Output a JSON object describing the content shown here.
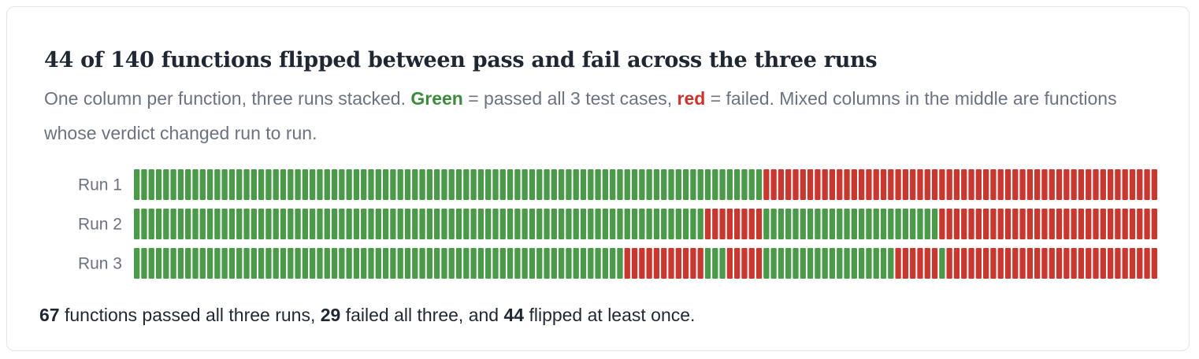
{
  "header": {
    "title": "44 of 140 functions flipped between pass and fail across the three runs",
    "subtitle_part1": "One column per function, three runs stacked. ",
    "subtitle_green": "Green",
    "subtitle_part2": " = passed all 3 test cases, ",
    "subtitle_red": "red",
    "subtitle_part3": " = failed. Mixed columns in the middle are functions whose verdict changed run to run."
  },
  "summary": {
    "passed_all": "67",
    "text1": " functions passed all three runs, ",
    "failed_all": "29",
    "text2": " failed all three, and ",
    "flipped": "44",
    "text3": " flipped at least once."
  },
  "colors": {
    "pass": "#4a9a4a",
    "fail": "#c9382f"
  },
  "chart_data": {
    "type": "heatmap",
    "columns": 140,
    "categories": [
      "pass",
      "fail"
    ],
    "rows": [
      {
        "name": "Run 1",
        "segments": [
          {
            "status": "pass",
            "count": 86
          },
          {
            "status": "fail",
            "count": 54
          }
        ]
      },
      {
        "name": "Run 2",
        "segments": [
          {
            "status": "pass",
            "count": 78
          },
          {
            "status": "fail",
            "count": 8
          },
          {
            "status": "pass",
            "count": 24
          },
          {
            "status": "fail",
            "count": 30
          }
        ]
      },
      {
        "name": "Run 3",
        "segments": [
          {
            "status": "pass",
            "count": 67
          },
          {
            "status": "fail",
            "count": 11
          },
          {
            "status": "pass",
            "count": 3
          },
          {
            "status": "fail",
            "count": 5
          },
          {
            "status": "pass",
            "count": 18
          },
          {
            "status": "fail",
            "count": 6
          },
          {
            "status": "pass",
            "count": 1
          },
          {
            "status": "fail",
            "count": 29
          }
        ]
      }
    ]
  }
}
